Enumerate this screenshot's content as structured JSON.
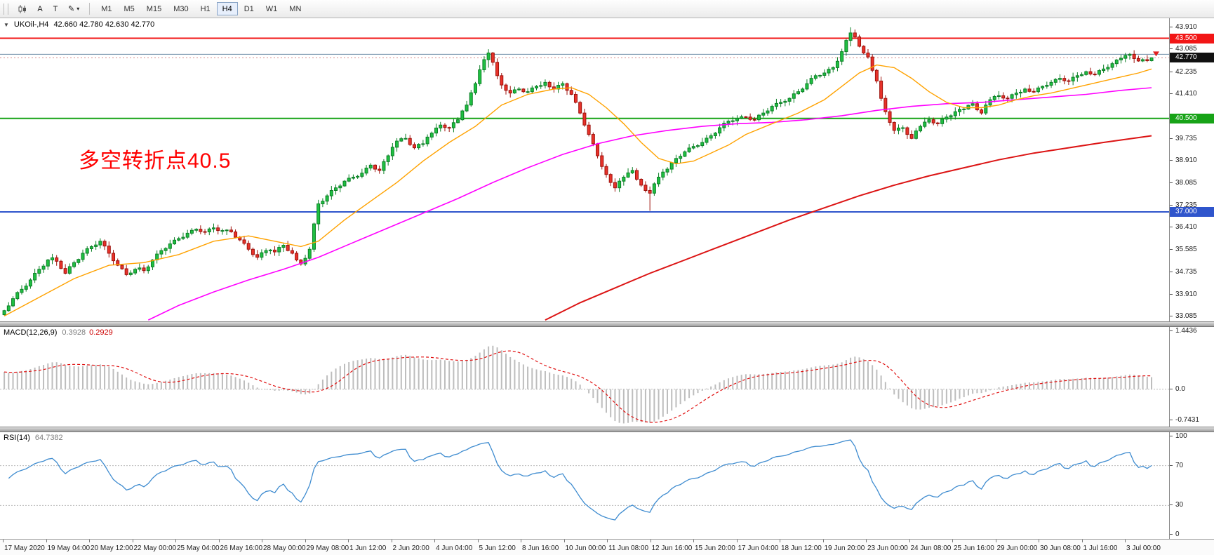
{
  "icons": {
    "dropdown_triangle": "▼",
    "caret_down": "▾",
    "pencil": "✎"
  },
  "toolbar": {
    "a_label": "A",
    "t_label": "T",
    "timeframes": [
      "M1",
      "M5",
      "M15",
      "M30",
      "H1",
      "H4",
      "D1",
      "W1",
      "MN"
    ],
    "active_timeframe": "H4"
  },
  "chart": {
    "title": "UKOil-,H4",
    "ohlc_text": "42.660 42.780 42.630 42.770",
    "annotation": "多空转折点40.5",
    "y_ticks": [
      "43.910",
      "43.085",
      "42.235",
      "41.410",
      "39.735",
      "38.910",
      "38.085",
      "37.235",
      "36.410",
      "35.585",
      "34.735",
      "33.910",
      "33.085"
    ],
    "levels": [
      {
        "price": 43.5,
        "label": "43.500",
        "color": "#f21616",
        "width": 2,
        "name": "resistance-line-43500"
      },
      {
        "price": 42.9,
        "label": "",
        "color": "#6b8ba6",
        "width": 1,
        "name": "minor-line-42900"
      },
      {
        "price": 40.5,
        "label": "40.500",
        "color": "#17a317",
        "width": 2,
        "name": "pivot-line-40500"
      },
      {
        "price": 37.0,
        "label": "37.000",
        "color": "#2f55cc",
        "width": 2,
        "name": "support-line-37000"
      }
    ],
    "current_price": {
      "value": 42.77,
      "label": "42.770",
      "badge_color": "#111111"
    },
    "colors": {
      "up": "#1fc042",
      "up_border": "#0c7f26",
      "down": "#e8322a",
      "down_border": "#9e120c"
    }
  },
  "chart_data": {
    "type": "candlestick",
    "symbol": "UKOil-",
    "timeframe": "H4",
    "price_range": [
      32.9,
      44.25
    ],
    "open_first": 33.15,
    "closes": [
      33.3,
      33.48,
      33.75,
      33.98,
      34.1,
      34.22,
      34.45,
      34.7,
      34.85,
      34.97,
      35.2,
      35.28,
      35.15,
      34.88,
      34.7,
      34.95,
      35.1,
      35.22,
      35.45,
      35.62,
      35.7,
      35.76,
      35.9,
      35.72,
      35.45,
      35.17,
      35.0,
      34.87,
      34.65,
      34.71,
      34.85,
      34.9,
      34.8,
      34.94,
      35.2,
      35.42,
      35.55,
      35.63,
      35.8,
      35.94,
      36.0,
      36.05,
      36.2,
      36.31,
      36.35,
      36.26,
      36.25,
      36.36,
      36.4,
      36.3,
      36.3,
      36.32,
      36.25,
      36.05,
      35.95,
      35.82,
      35.6,
      35.4,
      35.3,
      35.47,
      35.55,
      35.57,
      35.5,
      35.67,
      35.75,
      35.55,
      35.45,
      35.2,
      35.05,
      35.26,
      35.6,
      36.55,
      37.3,
      37.4,
      37.6,
      37.8,
      37.9,
      37.97,
      38.15,
      38.26,
      38.3,
      38.33,
      38.45,
      38.64,
      38.75,
      38.6,
      38.55,
      38.88,
      39.1,
      39.42,
      39.65,
      39.74,
      39.75,
      39.52,
      39.4,
      39.53,
      39.55,
      39.8,
      39.95,
      40.14,
      40.25,
      40.16,
      40.15,
      40.34,
      40.45,
      40.78,
      41.0,
      41.46,
      41.8,
      42.32,
      42.7,
      42.95,
      42.6,
      42.1,
      41.75,
      41.55,
      41.45,
      41.57,
      41.6,
      41.5,
      41.5,
      41.64,
      41.7,
      41.73,
      41.85,
      41.68,
      41.6,
      41.74,
      41.8,
      41.55,
      41.4,
      41.1,
      40.7,
      40.25,
      39.9,
      39.55,
      39.1,
      38.7,
      38.4,
      38.1,
      37.9,
      38.15,
      38.3,
      38.46,
      38.55,
      38.22,
      38.0,
      37.8,
      37.7,
      38.05,
      38.3,
      38.49,
      38.6,
      38.84,
      39.0,
      39.08,
      39.25,
      39.39,
      39.45,
      39.48,
      39.6,
      39.76,
      39.85,
      39.95,
      40.15,
      40.32,
      40.4,
      40.41,
      40.5,
      40.56,
      40.55,
      40.46,
      40.45,
      40.62,
      40.7,
      40.78,
      40.95,
      41.06,
      41.1,
      41.14,
      41.25,
      41.42,
      41.5,
      41.6,
      41.8,
      42.0,
      42.1,
      42.11,
      42.2,
      42.34,
      42.4,
      42.64,
      43.0,
      43.42,
      43.7,
      43.55,
      43.2,
      42.95,
      42.8,
      42.3,
      41.9,
      41.25,
      40.75,
      40.35,
      40.05,
      40.14,
      40.15,
      39.9,
      39.75,
      40.03,
      40.2,
      40.36,
      40.45,
      40.33,
      40.3,
      40.47,
      40.55,
      40.6,
      40.75,
      40.84,
      40.85,
      40.99,
      41.05,
      40.82,
      40.7,
      41.0,
      41.2,
      41.32,
      41.35,
      41.26,
      41.25,
      41.39,
      41.45,
      41.48,
      41.6,
      41.51,
      41.5,
      41.64,
      41.7,
      41.74,
      41.85,
      41.96,
      42.0,
      41.91,
      41.9,
      42.04,
      42.1,
      42.14,
      42.25,
      42.16,
      42.15,
      42.29,
      42.35,
      42.41,
      42.55,
      42.69,
      42.75,
      42.86,
      42.9,
      42.74,
      42.65,
      42.7,
      42.66,
      42.77
    ],
    "wick_overrides": {
      "72": [
        37.45,
        36.3
      ],
      "111": [
        43.09,
        42.4
      ],
      "148": [
        37.95,
        37.04
      ],
      "194": [
        43.91,
        43.2
      ],
      "263": [
        42.78,
        42.63
      ]
    },
    "ma_fast": {
      "color": "#ffa200",
      "width": 1.4,
      "points": [
        [
          0,
          33.1
        ],
        [
          8,
          33.8
        ],
        [
          16,
          34.5
        ],
        [
          24,
          35.0
        ],
        [
          32,
          35.1
        ],
        [
          40,
          35.4
        ],
        [
          48,
          35.9
        ],
        [
          56,
          36.1
        ],
        [
          62,
          35.9
        ],
        [
          68,
          35.7
        ],
        [
          72,
          35.9
        ],
        [
          78,
          36.7
        ],
        [
          84,
          37.4
        ],
        [
          90,
          38.1
        ],
        [
          96,
          38.9
        ],
        [
          102,
          39.6
        ],
        [
          108,
          40.2
        ],
        [
          114,
          41.0
        ],
        [
          120,
          41.4
        ],
        [
          126,
          41.6
        ],
        [
          130,
          41.65
        ],
        [
          134,
          41.4
        ],
        [
          138,
          40.9
        ],
        [
          142,
          40.3
        ],
        [
          146,
          39.6
        ],
        [
          150,
          39.0
        ],
        [
          154,
          38.8
        ],
        [
          158,
          38.9
        ],
        [
          162,
          39.2
        ],
        [
          166,
          39.5
        ],
        [
          170,
          39.9
        ],
        [
          176,
          40.3
        ],
        [
          182,
          40.7
        ],
        [
          188,
          41.2
        ],
        [
          192,
          41.7
        ],
        [
          196,
          42.2
        ],
        [
          200,
          42.5
        ],
        [
          204,
          42.4
        ],
        [
          208,
          42.0
        ],
        [
          212,
          41.5
        ],
        [
          216,
          41.1
        ],
        [
          220,
          40.9
        ],
        [
          224,
          40.9
        ],
        [
          228,
          41.0
        ],
        [
          232,
          41.2
        ],
        [
          236,
          41.35
        ],
        [
          240,
          41.45
        ],
        [
          244,
          41.6
        ],
        [
          248,
          41.75
        ],
        [
          252,
          41.9
        ],
        [
          256,
          42.05
        ],
        [
          260,
          42.2
        ],
        [
          263,
          42.35
        ]
      ]
    },
    "ma_mid": {
      "color": "#ff00ff",
      "width": 1.6,
      "points": [
        [
          33,
          32.95
        ],
        [
          40,
          33.5
        ],
        [
          48,
          34.0
        ],
        [
          56,
          34.45
        ],
        [
          64,
          34.85
        ],
        [
          72,
          35.3
        ],
        [
          80,
          35.85
        ],
        [
          88,
          36.4
        ],
        [
          96,
          36.95
        ],
        [
          104,
          37.5
        ],
        [
          112,
          38.1
        ],
        [
          120,
          38.65
        ],
        [
          128,
          39.15
        ],
        [
          136,
          39.55
        ],
        [
          144,
          39.85
        ],
        [
          152,
          40.05
        ],
        [
          160,
          40.2
        ],
        [
          168,
          40.3
        ],
        [
          176,
          40.35
        ],
        [
          184,
          40.45
        ],
        [
          192,
          40.6
        ],
        [
          200,
          40.8
        ],
        [
          208,
          40.95
        ],
        [
          216,
          41.05
        ],
        [
          224,
          41.1
        ],
        [
          232,
          41.2
        ],
        [
          240,
          41.3
        ],
        [
          248,
          41.4
        ],
        [
          256,
          41.55
        ],
        [
          263,
          41.65
        ]
      ]
    },
    "ma_slow": {
      "color": "#dc1414",
      "width": 2,
      "points": [
        [
          124,
          32.95
        ],
        [
          132,
          33.6
        ],
        [
          140,
          34.15
        ],
        [
          148,
          34.7
        ],
        [
          156,
          35.2
        ],
        [
          164,
          35.7
        ],
        [
          172,
          36.2
        ],
        [
          180,
          36.7
        ],
        [
          188,
          37.15
        ],
        [
          196,
          37.6
        ],
        [
          204,
          38.0
        ],
        [
          212,
          38.35
        ],
        [
          220,
          38.65
        ],
        [
          228,
          38.95
        ],
        [
          236,
          39.2
        ],
        [
          244,
          39.4
        ],
        [
          252,
          39.6
        ],
        [
          263,
          39.85
        ]
      ]
    },
    "indicators": {
      "macd": {
        "fast": 12,
        "slow": 26,
        "signal": 9,
        "seed_offset": 0.45,
        "range": [
          -0.9,
          1.5
        ]
      },
      "rsi": {
        "period": 14
      }
    }
  },
  "macd_panel": {
    "label": "MACD(12,26,9)",
    "value_main": "0.3928",
    "value_signal": "0.2929",
    "y_ticks": [
      "1.4436",
      "0.0",
      "-0.7431"
    ],
    "colors": {
      "hist": "#bdbdbd",
      "signal": "#e01010"
    }
  },
  "rsi_panel": {
    "label": "RSI(14)",
    "value": "64.7382",
    "y_ticks": [
      "100",
      "70",
      "30",
      "0"
    ],
    "levels": [
      70,
      30
    ],
    "color": "#3f8cd0"
  },
  "time_axis": {
    "labels": [
      "17 May 2020",
      "19 May 04:00",
      "20 May 12:00",
      "22 May 00:00",
      "25 May 04:00",
      "26 May 16:00",
      "28 May 00:00",
      "29 May 08:00",
      "1 Jun 12:00",
      "2 Jun 20:00",
      "4 Jun 04:00",
      "5 Jun 12:00",
      "8 Jun 16:00",
      "10 Jun 00:00",
      "11 Jun 08:00",
      "12 Jun 16:00",
      "15 Jun 20:00",
      "17 Jun 04:00",
      "18 Jun 12:00",
      "19 Jun 20:00",
      "23 Jun 00:00",
      "24 Jun 08:00",
      "25 Jun 16:00",
      "29 Jun 00:00",
      "30 Jun 08:00",
      "1 Jul 16:00",
      "3 Jul 00:00"
    ]
  }
}
